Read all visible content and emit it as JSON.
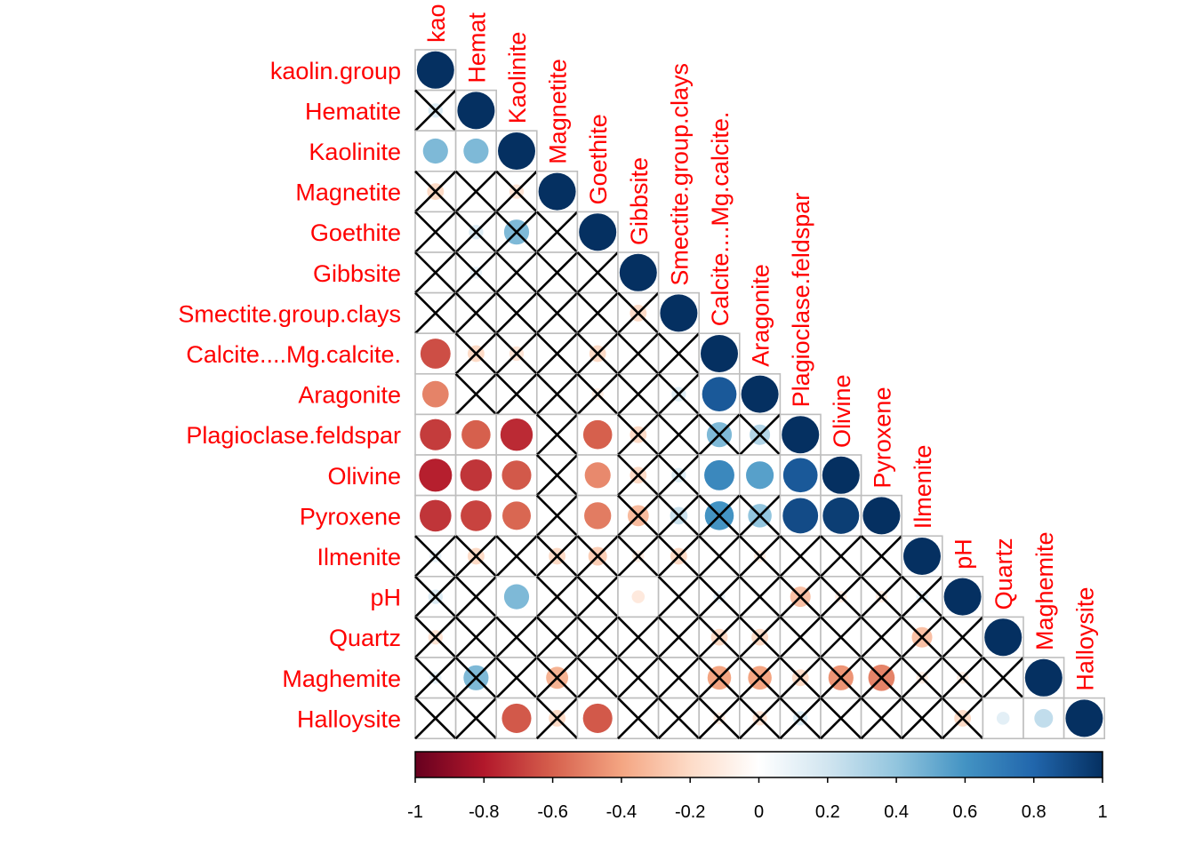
{
  "chart_data": {
    "type": "heatmap",
    "title": "",
    "variables": [
      "kaolin.group",
      "Hematite",
      "Kaolinite",
      "Magnetite",
      "Goethite",
      "Gibbsite",
      "Smectite.group.clays",
      "Calcite....Mg.calcite.",
      "Aragonite",
      "Plagioclase.feldspar",
      "Olivine",
      "Pyroxene",
      "Ilmenite",
      "pH",
      "Quartz",
      "Maghemite",
      "Halloysite"
    ],
    "column_labels": [
      "kao",
      "Hemat",
      "Kaolinite",
      "Magnetite",
      "Goethite",
      "Gibbsite",
      "Smectite.group.clays",
      "Calcite....Mg.calcite.",
      "Aragonite",
      "Plagioclase.feldspar",
      "Olivine",
      "Pyroxene",
      "Ilmenite",
      "pH",
      "Quartz",
      "Maghemite",
      "Halloysite"
    ],
    "lower_triangle": [
      [
        1.0
      ],
      [
        0.15,
        1.0
      ],
      [
        0.45,
        0.45,
        1.0
      ],
      [
        -0.2,
        0.0,
        -0.15,
        1.0
      ],
      [
        0.0,
        0.15,
        0.45,
        0.0,
        1.0
      ],
      [
        0.0,
        0.1,
        0.0,
        0.0,
        0.0,
        1.0
      ],
      [
        0.0,
        0.0,
        0.0,
        0.0,
        0.0,
        -0.2,
        1.0
      ],
      [
        -0.65,
        -0.2,
        -0.15,
        0.0,
        -0.2,
        0.0,
        0.0,
        1.0
      ],
      [
        -0.5,
        0.0,
        0.0,
        0.0,
        -0.1,
        0.0,
        0.15,
        0.85,
        1.0
      ],
      [
        -0.7,
        -0.6,
        -0.75,
        0.0,
        -0.6,
        -0.2,
        0.0,
        0.45,
        0.3,
        1.0
      ],
      [
        -0.78,
        -0.72,
        -0.62,
        0.0,
        -0.48,
        -0.2,
        0.15,
        0.65,
        0.55,
        0.85,
        1.0
      ],
      [
        -0.72,
        -0.68,
        -0.58,
        0.0,
        -0.52,
        -0.32,
        0.22,
        0.6,
        0.4,
        0.9,
        0.95,
        1.0
      ],
      [
        0.1,
        -0.2,
        0.0,
        -0.2,
        -0.25,
        -0.1,
        -0.2,
        0.0,
        -0.1,
        0.0,
        0.0,
        0.0,
        1.0
      ],
      [
        0.15,
        0.0,
        0.45,
        -0.05,
        0.0,
        -0.12,
        0.0,
        0.1,
        0.0,
        -0.3,
        -0.1,
        -0.1,
        0.1,
        1.0
      ],
      [
        -0.15,
        0.0,
        0.0,
        0.0,
        0.0,
        0.0,
        0.0,
        -0.2,
        -0.2,
        0.0,
        0.0,
        0.0,
        -0.3,
        0.0,
        1.0
      ],
      [
        0.1,
        0.45,
        0.0,
        -0.35,
        0.0,
        0.0,
        0.0,
        -0.4,
        -0.4,
        -0.2,
        -0.45,
        -0.5,
        -0.1,
        -0.1,
        0.0,
        1.0
      ],
      [
        0.0,
        0.0,
        -0.62,
        -0.2,
        -0.62,
        0.0,
        0.0,
        -0.1,
        -0.15,
        0.15,
        0.0,
        0.0,
        0.0,
        -0.2,
        0.12,
        0.25,
        1.0
      ]
    ],
    "insignificant_cells": [
      [
        1,
        0
      ],
      [
        3,
        0
      ],
      [
        3,
        1
      ],
      [
        3,
        2
      ],
      [
        4,
        0
      ],
      [
        4,
        1
      ],
      [
        4,
        2
      ],
      [
        4,
        3
      ],
      [
        5,
        0
      ],
      [
        5,
        1
      ],
      [
        5,
        2
      ],
      [
        5,
        3
      ],
      [
        5,
        4
      ],
      [
        6,
        0
      ],
      [
        6,
        1
      ],
      [
        6,
        2
      ],
      [
        6,
        3
      ],
      [
        6,
        4
      ],
      [
        6,
        5
      ],
      [
        7,
        1
      ],
      [
        7,
        2
      ],
      [
        7,
        3
      ],
      [
        7,
        4
      ],
      [
        7,
        5
      ],
      [
        7,
        6
      ],
      [
        8,
        1
      ],
      [
        8,
        2
      ],
      [
        8,
        3
      ],
      [
        8,
        4
      ],
      [
        8,
        5
      ],
      [
        8,
        6
      ],
      [
        9,
        3
      ],
      [
        9,
        5
      ],
      [
        9,
        6
      ],
      [
        9,
        7
      ],
      [
        9,
        8
      ],
      [
        10,
        3
      ],
      [
        10,
        5
      ],
      [
        10,
        6
      ],
      [
        11,
        3
      ],
      [
        11,
        5
      ],
      [
        11,
        6
      ],
      [
        11,
        7
      ],
      [
        11,
        8
      ],
      [
        12,
        0
      ],
      [
        12,
        1
      ],
      [
        12,
        2
      ],
      [
        12,
        3
      ],
      [
        12,
        4
      ],
      [
        12,
        5
      ],
      [
        12,
        6
      ],
      [
        12,
        7
      ],
      [
        12,
        8
      ],
      [
        12,
        9
      ],
      [
        12,
        10
      ],
      [
        12,
        11
      ],
      [
        13,
        0
      ],
      [
        13,
        1
      ],
      [
        13,
        3
      ],
      [
        13,
        4
      ],
      [
        13,
        6
      ],
      [
        13,
        7
      ],
      [
        13,
        8
      ],
      [
        13,
        9
      ],
      [
        13,
        10
      ],
      [
        13,
        11
      ],
      [
        13,
        12
      ],
      [
        14,
        0
      ],
      [
        14,
        1
      ],
      [
        14,
        2
      ],
      [
        14,
        3
      ],
      [
        14,
        4
      ],
      [
        14,
        5
      ],
      [
        14,
        6
      ],
      [
        14,
        7
      ],
      [
        14,
        8
      ],
      [
        14,
        9
      ],
      [
        14,
        10
      ],
      [
        14,
        11
      ],
      [
        14,
        12
      ],
      [
        14,
        13
      ],
      [
        15,
        0
      ],
      [
        15,
        1
      ],
      [
        15,
        2
      ],
      [
        15,
        3
      ],
      [
        15,
        4
      ],
      [
        15,
        5
      ],
      [
        15,
        6
      ],
      [
        15,
        7
      ],
      [
        15,
        8
      ],
      [
        15,
        9
      ],
      [
        15,
        10
      ],
      [
        15,
        11
      ],
      [
        15,
        12
      ],
      [
        15,
        13
      ],
      [
        15,
        14
      ],
      [
        16,
        0
      ],
      [
        16,
        1
      ],
      [
        16,
        3
      ],
      [
        16,
        5
      ],
      [
        16,
        6
      ],
      [
        16,
        7
      ],
      [
        16,
        8
      ],
      [
        16,
        9
      ],
      [
        16,
        10
      ],
      [
        16,
        11
      ],
      [
        16,
        12
      ],
      [
        16,
        13
      ]
    ],
    "colorbar": {
      "range": [
        -1,
        1
      ],
      "tick_labels": [
        "-1",
        "-0.8",
        "-0.6",
        "-0.4",
        "-0.2",
        "0",
        "0.2",
        "0.4",
        "0.6",
        "0.8",
        "1"
      ],
      "colors": [
        "#67001F",
        "#B2182B",
        "#D6604D",
        "#F4A582",
        "#FDDBC7",
        "#FFFFFF",
        "#D1E5F0",
        "#92C5DE",
        "#4393C3",
        "#2166AC",
        "#053061"
      ]
    },
    "label_color": "#FF0000",
    "grid": true,
    "legend_position": "bottom"
  }
}
